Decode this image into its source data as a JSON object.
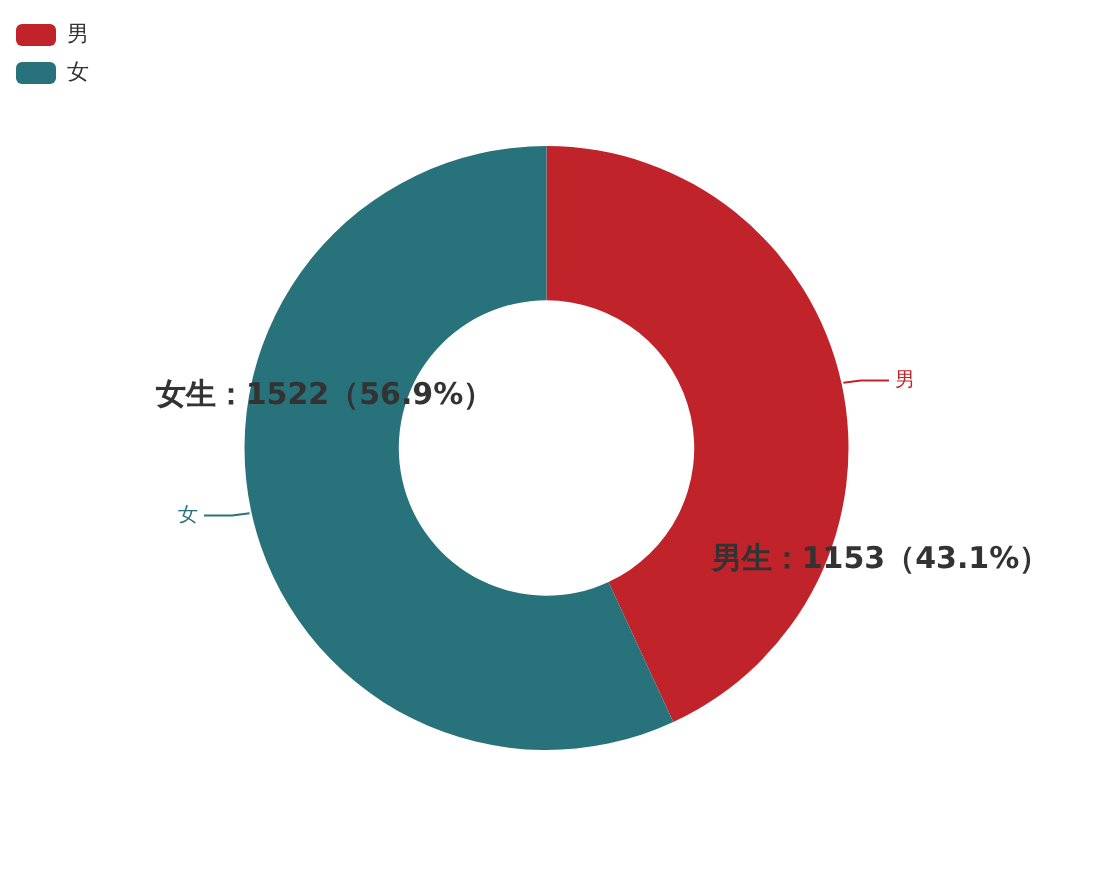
{
  "chart_data": {
    "type": "donut",
    "categories": [
      "男",
      "女"
    ],
    "values": [
      1153,
      1522
    ],
    "colors": [
      "#c1232b",
      "#27727b"
    ],
    "value_labels": [
      "男生：1153（43.1%）",
      "女生：1522（56.9%）"
    ],
    "legend": "top left"
  }
}
